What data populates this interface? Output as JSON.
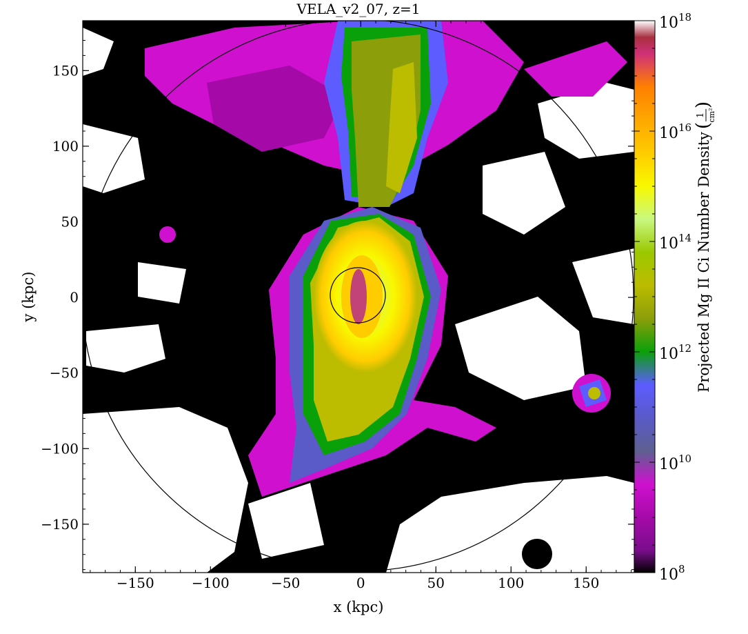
{
  "chart_data": {
    "type": "heatmap",
    "title": "VELA_v2_07, z=1",
    "xlabel": "x  (kpc)",
    "ylabel": "y  (kpc)",
    "colorbar_label": "Projected Mg II Ci Number Density",
    "colorbar_unit": {
      "numerator": "1",
      "denominator": "cm²"
    },
    "xlim": [
      -185,
      182
    ],
    "ylim": [
      -182,
      183
    ],
    "x_ticks": [
      -150,
      -100,
      -50,
      0,
      50,
      100,
      150
    ],
    "y_ticks": [
      -150,
      -100,
      -50,
      0,
      50,
      100,
      150
    ],
    "x_tick_labels": [
      "−150",
      "−100",
      "−50",
      "0",
      "50",
      "100",
      "150"
    ],
    "y_tick_labels": [
      "−150",
      "−100",
      "−50",
      "0",
      "50",
      "100",
      "150"
    ],
    "colorbar_scale": "log",
    "colorbar_range": [
      100000000.0,
      1e+18
    ],
    "colorbar_ticks": [
      {
        "base": "10",
        "exp": "8",
        "value": 8
      },
      {
        "base": "10",
        "exp": "10",
        "value": 10
      },
      {
        "base": "10",
        "exp": "12",
        "value": 12
      },
      {
        "base": "10",
        "exp": "14",
        "value": 14
      },
      {
        "base": "10",
        "exp": "16",
        "value": 16
      },
      {
        "base": "10",
        "exp": "18",
        "value": 18
      }
    ],
    "colormap_levels": [
      "#000000",
      "#7a0d8c",
      "#a50aa8",
      "#cf10cf",
      "#5e6090",
      "#5a5ac8",
      "#5c5cff",
      "#0aa00a",
      "#8c9e0a",
      "#bcbc00",
      "#9cc800",
      "#c8f880",
      "#f8f800",
      "#ffcc00",
      "#ffa800",
      "#ff8000",
      "#d03078",
      "#a83040",
      "#ffffff"
    ],
    "circles_kpc": [
      {
        "cx": 0,
        "cy": 0,
        "r": 18
      },
      {
        "cx": 0,
        "cy": 0,
        "r": 182
      }
    ]
  }
}
